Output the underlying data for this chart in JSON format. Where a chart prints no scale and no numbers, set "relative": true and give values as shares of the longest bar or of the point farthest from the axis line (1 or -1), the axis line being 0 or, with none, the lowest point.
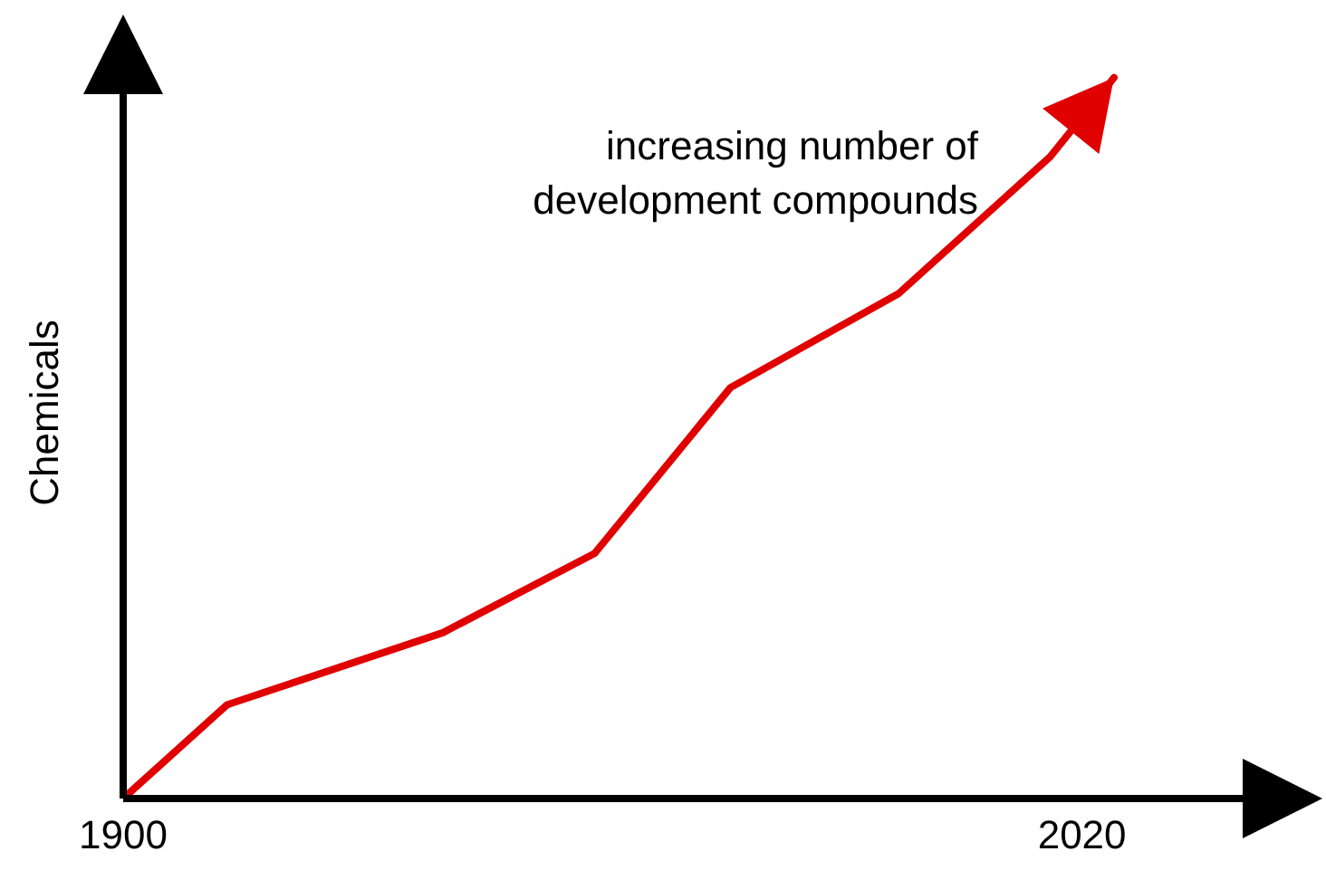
{
  "chart_data": {
    "type": "line",
    "ylabel": "Chemicals",
    "relative": true,
    "x": [
      1900,
      1913,
      1940,
      1959,
      1976,
      1997,
      2016,
      2024
    ],
    "series": [
      {
        "color": "#e00000",
        "values": [
          0,
          0.13,
          0.23,
          0.34,
          0.57,
          0.7,
          0.89,
          1
        ]
      }
    ],
    "xlim": [
      1900,
      2046
    ],
    "xticks": [
      1900,
      2020
    ],
    "grid": false,
    "legend": false,
    "marker": "none",
    "line_style": "solid",
    "annotations": [
      "increasing number of development compounds"
    ]
  }
}
